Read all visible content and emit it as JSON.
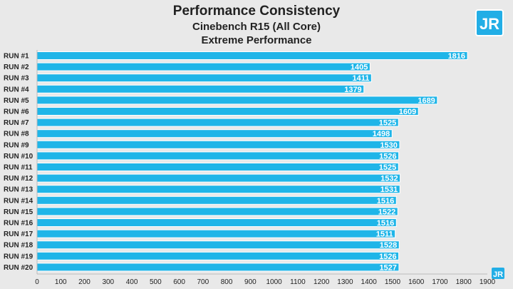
{
  "logo": {
    "text": "JR",
    "color": "#22aee6"
  },
  "colors": {
    "bar": "#1fb5e8",
    "bar_edge": "#ffffff",
    "background": "#e9e9e9",
    "text": "#222222"
  },
  "chart_data": {
    "type": "bar",
    "orientation": "horizontal",
    "title": "Performance Consistency",
    "subtitle_lines": [
      "Cinebench R15 (All Core)",
      "Extreme Performance"
    ],
    "categories": [
      "RUN #1",
      "RUN #2",
      "RUN #3",
      "RUN #4",
      "RUN #5",
      "RUN #6",
      "RUN #7",
      "RUN #8",
      "RUN #9",
      "RUN #10",
      "RUN #11",
      "RUN #12",
      "RUN #13",
      "RUN #14",
      "RUN #15",
      "RUN #16",
      "RUN #17",
      "RUN #18",
      "RUN #19",
      "RUN #20"
    ],
    "values": [
      1816,
      1405,
      1411,
      1379,
      1689,
      1609,
      1525,
      1498,
      1530,
      1526,
      1525,
      1532,
      1531,
      1516,
      1522,
      1516,
      1511,
      1528,
      1526,
      1527
    ],
    "xlim": [
      0,
      1900
    ],
    "xticks": [
      0,
      100,
      200,
      300,
      400,
      500,
      600,
      700,
      800,
      900,
      1000,
      1100,
      1200,
      1300,
      1400,
      1500,
      1600,
      1700,
      1800,
      1900
    ],
    "data_labels": true,
    "grid": false,
    "legend": "none"
  }
}
